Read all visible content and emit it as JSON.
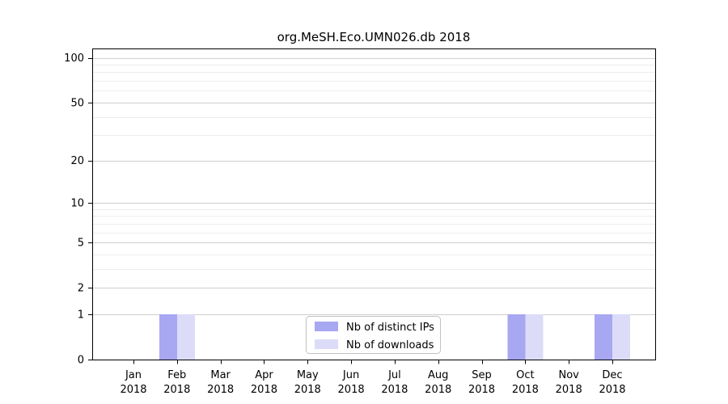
{
  "title": "org.MeSH.Eco.UMN026.db 2018",
  "legend": {
    "items": [
      {
        "label": "Nb of distinct IPs",
        "color": "#a7a7f2"
      },
      {
        "label": "Nb of downloads",
        "color": "#dcdcf9"
      }
    ]
  },
  "chart_data": {
    "type": "bar",
    "title": "org.MeSH.Eco.UMN026.db 2018",
    "categories": [
      "Jan",
      "Feb",
      "Mar",
      "Apr",
      "May",
      "Jun",
      "Jul",
      "Aug",
      "Sep",
      "Oct",
      "Nov",
      "Dec"
    ],
    "year": "2018",
    "series": [
      {
        "name": "Nb of distinct IPs",
        "color": "#a7a7f2",
        "values": [
          0,
          1,
          0,
          0,
          0,
          0,
          0,
          0,
          0,
          1,
          0,
          1
        ]
      },
      {
        "name": "Nb of downloads",
        "color": "#dcdcf9",
        "values": [
          0,
          1,
          0,
          0,
          0,
          0,
          0,
          0,
          0,
          1,
          0,
          1
        ]
      }
    ],
    "yaxis": {
      "scale": "log10(1+x)",
      "major_ticks": [
        0,
        1,
        2,
        5,
        10,
        20,
        50,
        100
      ],
      "minor_ticks": [
        3,
        4,
        6,
        7,
        8,
        9,
        30,
        40,
        60,
        70,
        80,
        90
      ],
      "ylim": [
        0,
        116
      ]
    },
    "grid": true,
    "legend_position": "inside-bottom-center"
  },
  "colors": {
    "background": "#ffffff",
    "axis": "#000000",
    "grid_major": "#cfcfcf",
    "grid_minor": "#ededed",
    "legend_border": "#c2c2c2",
    "text": "#000000"
  }
}
